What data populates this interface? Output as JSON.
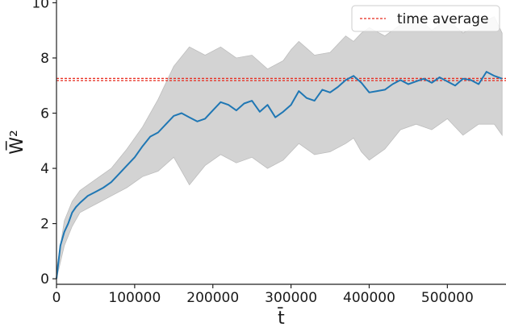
{
  "chart_data": {
    "type": "line",
    "title": "",
    "xlabel": "t̄",
    "ylabel": "W̅²",
    "xlim": [
      0,
      575000
    ],
    "ylim": [
      -0.2,
      10.1
    ],
    "x_ticks": [
      0,
      100000,
      200000,
      300000,
      400000,
      500000
    ],
    "x_tick_labels": [
      "0",
      "100000",
      "200000",
      "300000",
      "400000",
      "500000"
    ],
    "y_ticks": [
      0,
      2,
      4,
      6,
      8,
      10
    ],
    "y_tick_labels": [
      "0",
      "2",
      "4",
      "6",
      "8",
      "10"
    ],
    "grid": false,
    "legend": {
      "placement": "top-right",
      "entries": [
        "time average"
      ]
    },
    "colors": {
      "mean": "#1f77b4",
      "band": "#d3d3d3",
      "band_edge": "#bdbdbd",
      "time_average": "#e8291c"
    },
    "series": [
      {
        "kind": "mean_line",
        "x": [
          0,
          5000,
          10000,
          15000,
          20000,
          25000,
          30000,
          40000,
          50000,
          60000,
          70000,
          80000,
          90000,
          100000,
          110000,
          120000,
          130000,
          140000,
          150000,
          160000,
          170000,
          180000,
          190000,
          200000,
          210000,
          220000,
          230000,
          240000,
          250000,
          260000,
          270000,
          280000,
          290000,
          300000,
          310000,
          320000,
          330000,
          340000,
          350000,
          360000,
          370000,
          380000,
          390000,
          400000,
          410000,
          420000,
          430000,
          440000,
          450000,
          460000,
          470000,
          480000,
          490000,
          500000,
          510000,
          520000,
          530000,
          540000,
          550000,
          560000,
          570000
        ],
        "values": [
          0.0,
          1.2,
          1.7,
          2.0,
          2.4,
          2.6,
          2.75,
          3.0,
          3.15,
          3.3,
          3.5,
          3.8,
          4.1,
          4.4,
          4.8,
          5.15,
          5.3,
          5.6,
          5.9,
          6.0,
          5.85,
          5.7,
          5.8,
          6.1,
          6.4,
          6.3,
          6.1,
          6.35,
          6.45,
          6.05,
          6.3,
          5.85,
          6.05,
          6.3,
          6.8,
          6.55,
          6.45,
          6.85,
          6.75,
          6.95,
          7.2,
          7.35,
          7.1,
          6.75,
          6.8,
          6.85,
          7.05,
          7.2,
          7.05,
          7.15,
          7.25,
          7.1,
          7.3,
          7.15,
          7.0,
          7.25,
          7.2,
          7.05,
          7.5,
          7.35,
          7.25
        ]
      },
      {
        "kind": "band_upper",
        "x": [
          0,
          10000,
          20000,
          30000,
          50000,
          70000,
          90000,
          110000,
          130000,
          150000,
          170000,
          190000,
          210000,
          230000,
          250000,
          270000,
          290000,
          300000,
          310000,
          330000,
          350000,
          370000,
          380000,
          390000,
          400000,
          420000,
          440000,
          460000,
          480000,
          500000,
          520000,
          540000,
          560000,
          570000
        ],
        "values": [
          0.3,
          2.1,
          2.8,
          3.2,
          3.6,
          4.0,
          4.7,
          5.5,
          6.5,
          7.7,
          8.4,
          8.1,
          8.4,
          8.0,
          8.1,
          7.6,
          7.9,
          8.3,
          8.6,
          8.1,
          8.2,
          8.8,
          8.6,
          8.9,
          9.1,
          8.8,
          9.2,
          9.5,
          9.0,
          9.4,
          8.9,
          9.2,
          9.5,
          8.9
        ]
      },
      {
        "kind": "band_lower",
        "x": [
          0,
          10000,
          20000,
          30000,
          50000,
          70000,
          90000,
          110000,
          130000,
          150000,
          170000,
          190000,
          210000,
          230000,
          250000,
          270000,
          290000,
          300000,
          310000,
          330000,
          350000,
          370000,
          380000,
          390000,
          400000,
          420000,
          440000,
          460000,
          480000,
          500000,
          520000,
          540000,
          560000,
          570000
        ],
        "values": [
          0.0,
          1.2,
          1.9,
          2.4,
          2.7,
          3.0,
          3.3,
          3.7,
          3.9,
          4.4,
          3.4,
          4.1,
          4.5,
          4.2,
          4.4,
          4.0,
          4.3,
          4.6,
          4.9,
          4.5,
          4.6,
          4.9,
          5.1,
          4.6,
          4.3,
          4.7,
          5.4,
          5.6,
          5.4,
          5.8,
          5.2,
          5.6,
          5.6,
          5.2
        ]
      },
      {
        "kind": "hline",
        "name": "time average",
        "value": 7.22
      }
    ]
  }
}
